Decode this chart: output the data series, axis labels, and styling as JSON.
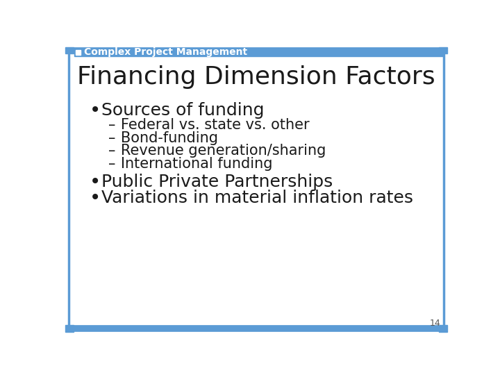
{
  "title": "Financing Dimension Factors",
  "header_text": "Complex Project Management",
  "header_color": "#5b9bd5",
  "border_color": "#5b9bd5",
  "background_color": "#ffffff",
  "text_color": "#1a1a1a",
  "title_fontsize": 26,
  "header_fontsize": 10,
  "body_fontsize": 18,
  "sub_fontsize": 15,
  "page_number": "14",
  "bullet1": "Sources of funding",
  "subbullets": [
    "Federal vs. state vs. other",
    "Bond-funding",
    "Revenue generation/sharing",
    "International funding"
  ],
  "bullet2": "Public Private Partnerships",
  "bullet3": "Variations in material inflation rates"
}
